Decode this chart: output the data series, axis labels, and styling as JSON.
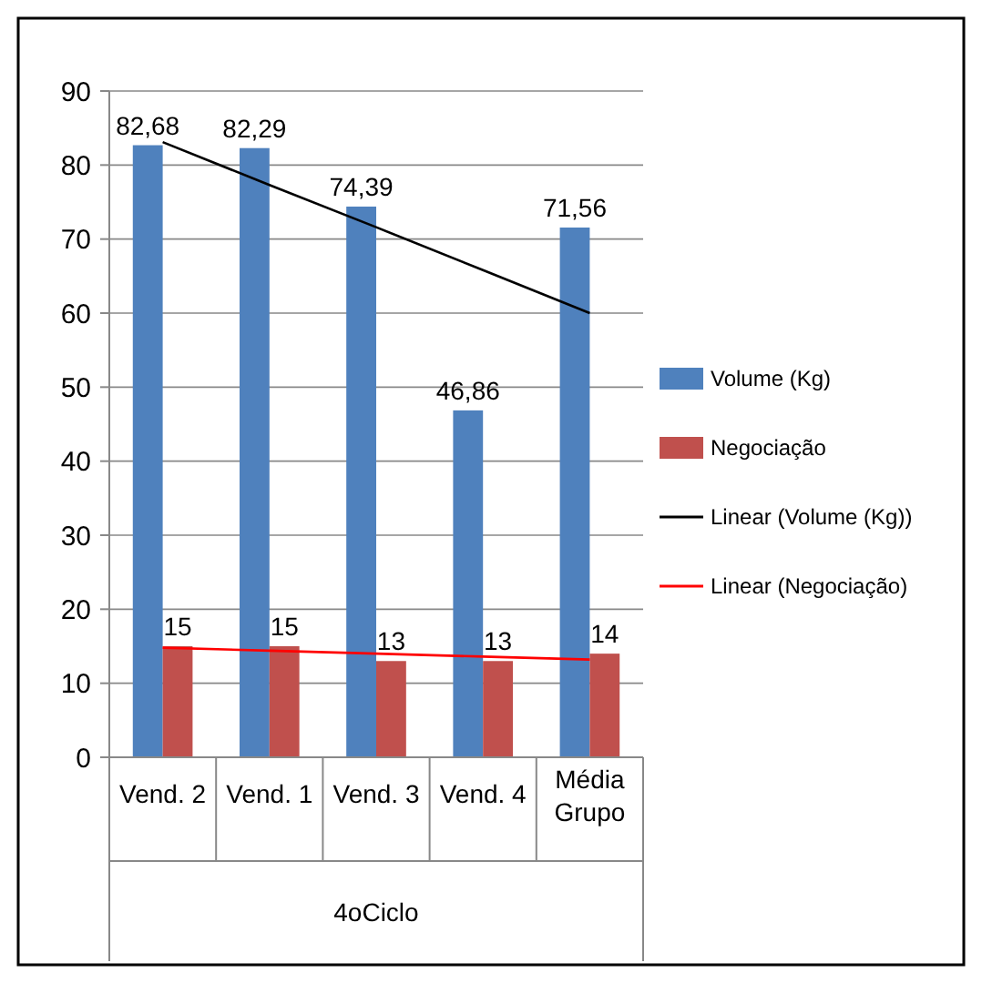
{
  "chart_data": {
    "type": "bar",
    "xlabel": "4oCiclo",
    "categories": [
      "Vend. 2",
      "Vend. 1",
      "Vend. 3",
      "Vend. 4",
      "Média Grupo"
    ],
    "series": [
      {
        "name": "Volume (Kg)",
        "color": "#4f81bd",
        "values": [
          82.68,
          82.29,
          74.39,
          46.86,
          71.56
        ],
        "value_labels": [
          "82,68",
          "82,29",
          "74,39",
          "46,86",
          "71,56"
        ]
      },
      {
        "name": "Negociação",
        "color": "#c0504d",
        "values": [
          15,
          15,
          13,
          13,
          14
        ],
        "value_labels": [
          "15",
          "15",
          "13",
          "13",
          "14"
        ]
      },
      {
        "name": "Linear (Volume (Kg))",
        "type": "line",
        "color": "#000000",
        "values": [
          83.1,
          77.3,
          71.6,
          65.8,
          60.0
        ]
      },
      {
        "name": "Linear (Negociação)",
        "type": "line",
        "color": "#ff0000",
        "values": [
          14.8,
          14.4,
          14,
          13.6,
          13.2
        ]
      }
    ],
    "ylim": [
      0,
      90
    ],
    "yticks": [
      0,
      10,
      20,
      30,
      40,
      50,
      60,
      70,
      80,
      90
    ],
    "grid": "y",
    "legend": "right",
    "marker": "none",
    "line_style": "solid"
  }
}
